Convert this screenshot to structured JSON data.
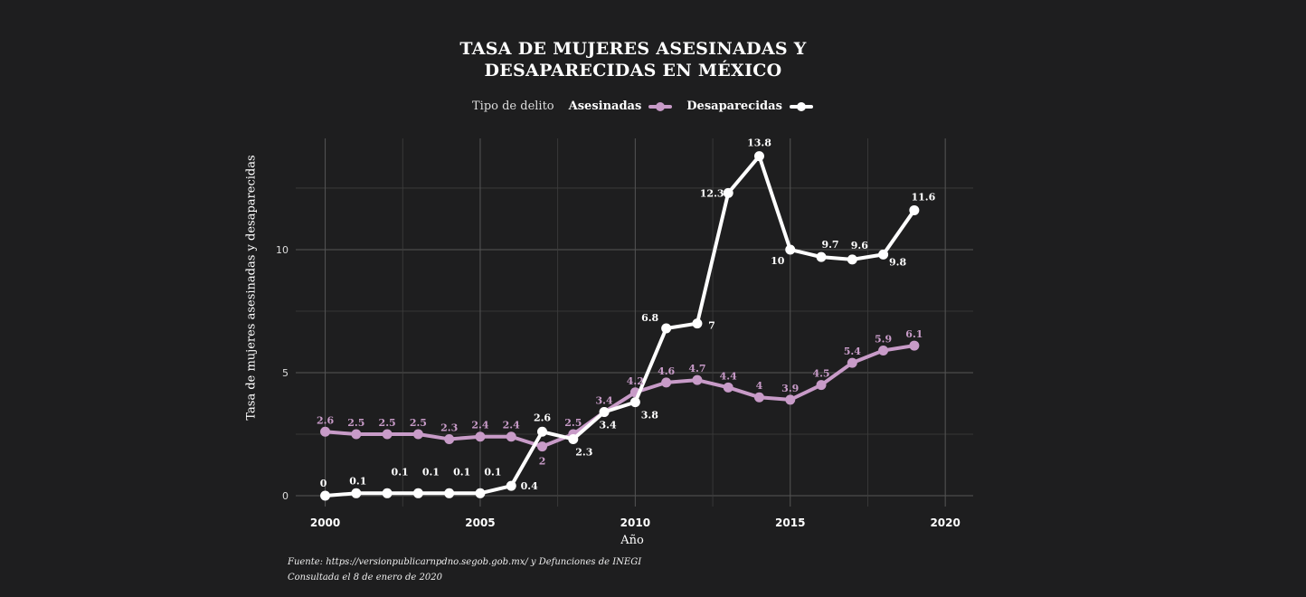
{
  "chart_data": {
    "type": "line",
    "title_line1": "TASA DE MUJERES ASESINADAS Y",
    "title_line2": "DESAPARECIDAS EN MÉXICO",
    "legend_title": "Tipo de delito",
    "xlabel": "Año",
    "ylabel": "Tasa de mujeres asesinadas y desaparecidas",
    "x": [
      2000,
      2001,
      2002,
      2003,
      2004,
      2005,
      2006,
      2007,
      2008,
      2009,
      2010,
      2011,
      2012,
      2013,
      2014,
      2015,
      2016,
      2017,
      2018,
      2019
    ],
    "xticks": [
      2000,
      2005,
      2010,
      2015,
      2020
    ],
    "yticks": [
      0,
      5,
      10
    ],
    "xlim": [
      1999.05,
      2020.9
    ],
    "ylim": [
      -0.44,
      14.52
    ],
    "grid": true,
    "legend_position": "top",
    "series": [
      {
        "name": "Asesinadas",
        "color": "#c89bc8",
        "values": [
          2.6,
          2.5,
          2.5,
          2.5,
          2.3,
          2.4,
          2.4,
          2,
          2.5,
          3.4,
          4.2,
          4.6,
          4.7,
          4.4,
          4,
          3.9,
          4.5,
          5.4,
          5.9,
          6.1
        ]
      },
      {
        "name": "Desaparecidas",
        "color": "#ffffff",
        "values": [
          0,
          0.1,
          0.1,
          0.1,
          0.1,
          0.1,
          0.4,
          2.6,
          2.3,
          3.4,
          3.8,
          6.8,
          7,
          12.3,
          13.8,
          10,
          9.7,
          9.6,
          9.8,
          11.6
        ]
      }
    ]
  },
  "footer": {
    "source": "Fuente: https://versionpublicarnpdno.segob.gob.mx/ y Defunciones de INEGI",
    "consulted": "Consultada el 8 de enero de 2020"
  }
}
